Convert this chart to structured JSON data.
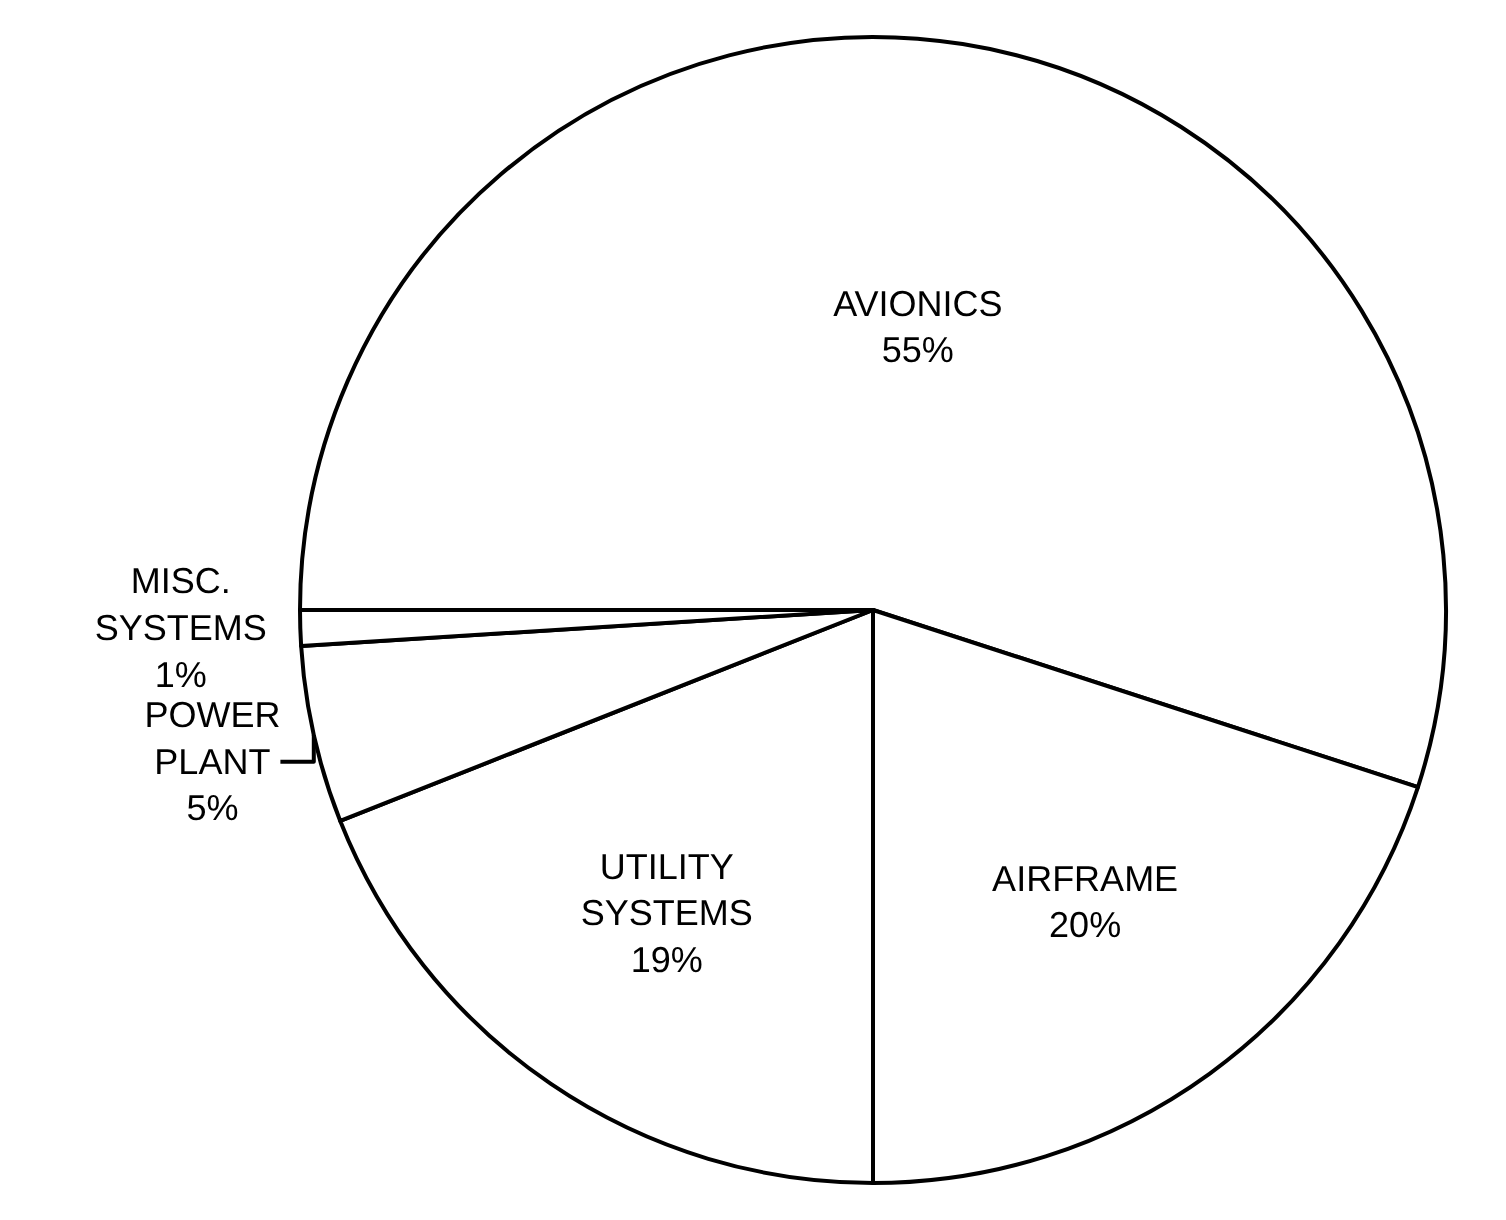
{
  "chart_data": {
    "type": "pie",
    "categories": [
      "AVIONICS",
      "AIRFRAME",
      "UTILITY SYSTEMS",
      "POWER PLANT",
      "MISC. SYSTEMS"
    ],
    "values": [
      55,
      20,
      19,
      5,
      1
    ],
    "colors": [
      "#ffffff",
      "#ffffff",
      "#ffffff",
      "#ffffff",
      "#ffffff"
    ],
    "value_labels": [
      "55%",
      "20%",
      "19%",
      "5%",
      "1%"
    ],
    "legend": false
  }
}
